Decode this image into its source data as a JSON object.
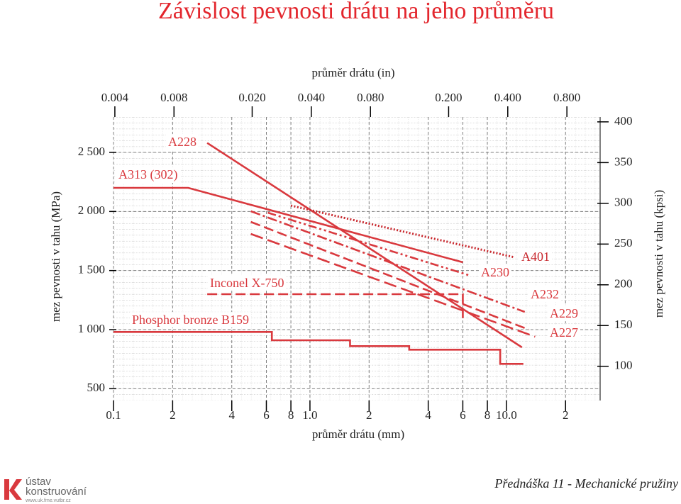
{
  "chart_data": {
    "type": "line",
    "title": "Závislost pevnosti drátu na jeho průměru",
    "x_label": "průměr drátu (mm)",
    "x2_label": "průměr drátu (in)",
    "y_label": "mez pevnosti v tahu (MPa)",
    "y2_label": "mez pevnosti v tahu (kpsi)",
    "xscale": "log",
    "grid": true,
    "xlim": [
      0.1,
      30
    ],
    "xticks": [
      0.1,
      {
        "value": 0.2,
        "label": "2"
      },
      {
        "value": 0.4,
        "label": "4"
      },
      {
        "value": 0.6,
        "label": "6"
      },
      {
        "value": 0.8,
        "label": "8"
      },
      {
        "value": 1,
        "label": "1.0"
      },
      {
        "value": 2,
        "label": "2"
      },
      {
        "value": 4,
        "label": "4"
      },
      {
        "value": 6,
        "label": "6"
      },
      {
        "value": 8,
        "label": "8"
      },
      {
        "value": 10,
        "label": "10.0"
      },
      {
        "value": 20,
        "label": "2"
      }
    ],
    "x2lim": [
      0.003937,
      1.181
    ],
    "x2ticks": [
      0.004,
      0.008,
      {
        "value": 0.02,
        "label": "0.020"
      },
      {
        "value": 0.04,
        "label": "0.040"
      },
      {
        "value": 0.08,
        "label": "0.080"
      },
      {
        "value": 0.2,
        "label": "0.200"
      },
      {
        "value": 0.4,
        "label": "0.400"
      },
      {
        "value": 0.8,
        "label": "0.800"
      }
    ],
    "ylim": [
      400,
      2800
    ],
    "yticks": [
      500,
      {
        "value": 1000,
        "label": "1 000"
      },
      {
        "value": 1500,
        "label": "1 500"
      },
      {
        "value": 2000,
        "label": "2 000"
      },
      {
        "value": 2500,
        "label": "2 500"
      }
    ],
    "y2lim": [
      58,
      406
    ],
    "y2ticks": [
      100,
      150,
      200,
      250,
      300,
      350,
      400
    ],
    "series": [
      {
        "name": "A228",
        "color": "#d9393e",
        "style": "solid",
        "x": [
          0.3,
          12
        ],
        "values": [
          2580,
          850
        ]
      },
      {
        "name": "A313 (302)",
        "color": "#d9393e",
        "style": "solid",
        "x": [
          0.1,
          0.24,
          6
        ],
        "values": [
          2200,
          2200,
          1570
        ]
      },
      {
        "name": "A401",
        "color": "#c8282e",
        "style": "dotted",
        "x": [
          0.8,
          11
        ],
        "values": [
          2050,
          1612
        ]
      },
      {
        "name": "A230",
        "color": "#d9393e",
        "style": "dashdotdot",
        "x": [
          0.61,
          6.4
        ],
        "values": [
          1990,
          1462
        ]
      },
      {
        "name": "A232",
        "color": "#d9393e",
        "style": "dashdot",
        "x": [
          0.5,
          12.4
        ],
        "values": [
          2002,
          1150
        ]
      },
      {
        "name": "A229",
        "color": "#d9393e",
        "style": "dashed",
        "x": [
          0.5,
          13
        ],
        "values": [
          1912,
          1000
        ]
      },
      {
        "name": "A227",
        "color": "#d9393e",
        "style": "longdash",
        "x": [
          0.5,
          14
        ],
        "values": [
          1810,
          940
        ]
      },
      {
        "name": "Inconel X-750",
        "color": "#d9393e",
        "style": "dashed",
        "x": [
          0.3,
          6,
          6
        ],
        "values": [
          1300,
          1300,
          1090
        ]
      },
      {
        "name": "Phosphor bronze B159",
        "color": "#d9393e",
        "style": "solid",
        "x": [
          0.1,
          0.64,
          0.64,
          1.6,
          1.6,
          3.2,
          3.2,
          9.3,
          9.3,
          12.2
        ],
        "values": [
          980,
          980,
          910,
          910,
          860,
          860,
          830,
          830,
          710,
          710
        ]
      }
    ]
  },
  "footer": {
    "lecture": "Přednáška 11 - Mechanické pružiny",
    "logo_line1": "ústav",
    "logo_line2": "konstruování",
    "url": "www.uk.fme.vutbr.cz"
  }
}
